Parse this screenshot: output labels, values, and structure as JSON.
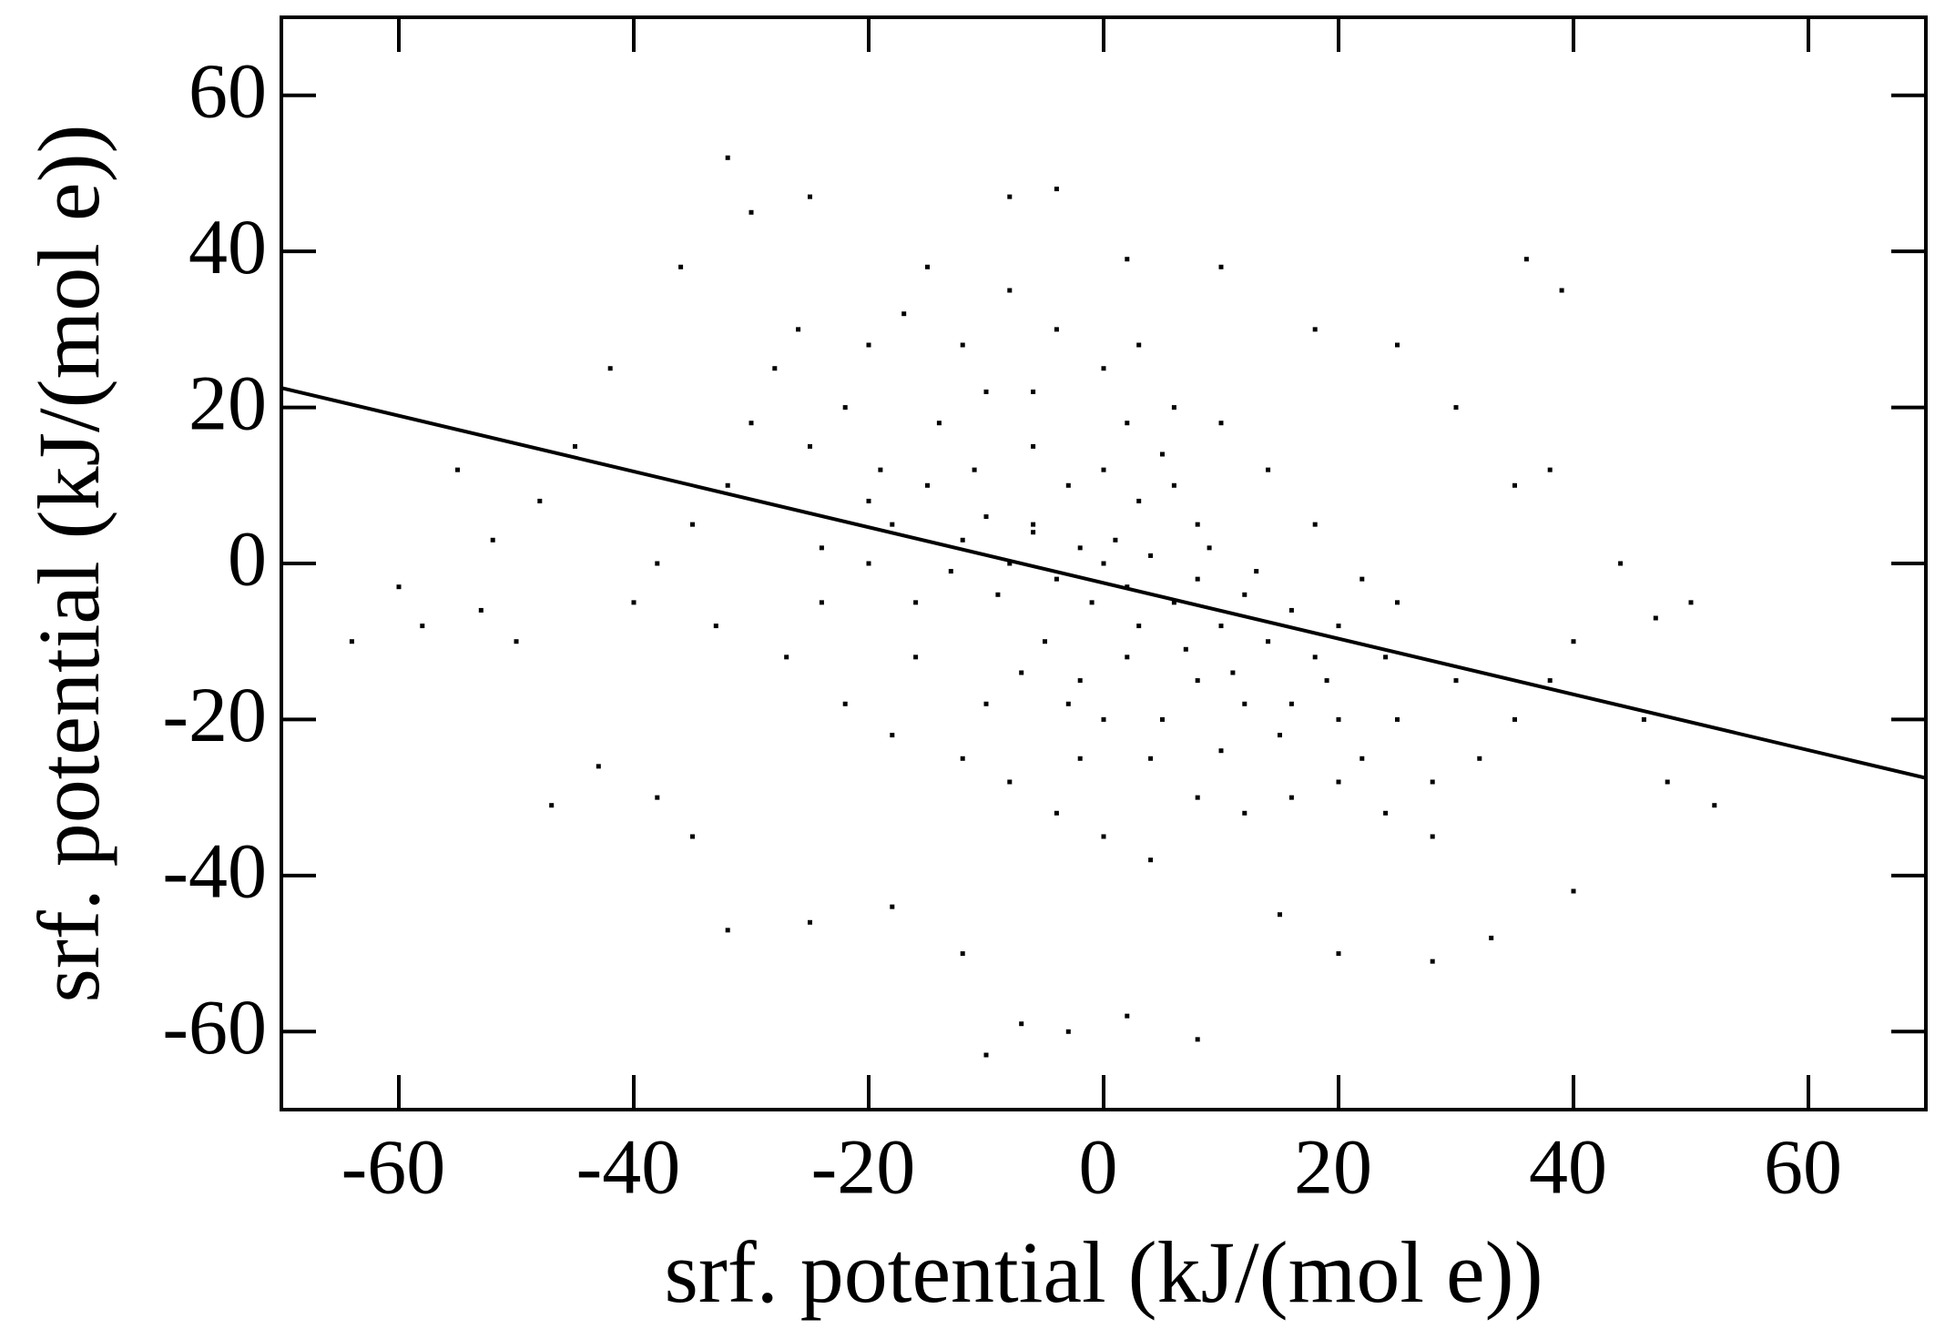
{
  "chart_data": {
    "type": "scatter",
    "x_label": "srf. potential (kJ/(mol e))",
    "y_label": "srf. potential (kJ/(mol e))",
    "xlim": [
      -70,
      70
    ],
    "ylim": [
      -70,
      70
    ],
    "xticks": [
      -60,
      -40,
      -20,
      0,
      20,
      40,
      60
    ],
    "yticks": [
      -60,
      -40,
      -20,
      0,
      20,
      40,
      60
    ],
    "grid": false,
    "series": [
      {
        "color": "#000000",
        "x": [
          -20,
          -18,
          -15,
          -12,
          -10,
          -8,
          -6,
          -4,
          -2,
          0,
          2,
          4,
          6,
          8,
          10,
          12,
          14,
          16,
          -25,
          -22,
          -24,
          -16,
          -14,
          -10,
          -6,
          -3,
          0,
          3,
          5,
          8,
          -5,
          -2,
          2,
          5,
          8,
          12,
          15,
          18,
          20,
          22,
          25,
          28,
          30,
          -28,
          -26,
          -20,
          -17,
          -12,
          -8,
          -4,
          0,
          3,
          6,
          10,
          14,
          18,
          22,
          25,
          -30,
          -32,
          -35,
          -38,
          -40,
          -33,
          -27,
          -22,
          -18,
          -12,
          -8,
          -4,
          0,
          4,
          8,
          12,
          16,
          20,
          24,
          28,
          32,
          35,
          38,
          40,
          -45,
          -48,
          -52,
          -55,
          -60,
          -64,
          -58,
          -42,
          -36,
          -30,
          -25,
          -32,
          -15,
          -8,
          -4,
          2,
          10,
          18,
          25,
          30,
          35,
          38,
          39,
          36,
          44,
          47,
          50,
          46,
          52,
          48,
          40,
          33,
          28,
          20,
          15,
          8,
          2,
          -3,
          -7,
          -10,
          -12,
          -18,
          -25,
          -32,
          -35,
          -38,
          -43,
          -47,
          -50,
          -53,
          -6,
          -1,
          1,
          3,
          -9,
          7,
          9,
          -11,
          -13,
          11,
          13,
          -7,
          4,
          0,
          -3,
          -16,
          16,
          -19,
          19,
          6,
          -6,
          2,
          -20,
          20,
          -24,
          24,
          -2,
          10,
          -10
        ],
        "values": [
          8,
          5,
          10,
          3,
          6,
          0,
          4,
          -2,
          2,
          0,
          -3,
          1,
          -5,
          -2,
          -8,
          -4,
          -10,
          -6,
          15,
          20,
          2,
          -5,
          18,
          22,
          15,
          10,
          12,
          8,
          14,
          5,
          -10,
          -15,
          -12,
          -20,
          -15,
          -18,
          -22,
          -12,
          -8,
          -25,
          -20,
          -28,
          -15,
          25,
          30,
          28,
          32,
          28,
          35,
          30,
          25,
          28,
          20,
          18,
          12,
          5,
          -2,
          -5,
          18,
          10,
          5,
          0,
          -5,
          -8,
          -12,
          -18,
          -22,
          -25,
          -28,
          -32,
          -35,
          -38,
          -30,
          -32,
          -30,
          -28,
          -32,
          -35,
          -25,
          -20,
          -15,
          -10,
          15,
          8,
          3,
          12,
          -3,
          -10,
          -8,
          25,
          38,
          45,
          47,
          52,
          38,
          47,
          48,
          39,
          38,
          30,
          28,
          20,
          10,
          12,
          35,
          39,
          0,
          -7,
          -5,
          -20,
          -31,
          -28,
          -42,
          -48,
          -51,
          -50,
          -45,
          -61,
          -58,
          -60,
          -59,
          -63,
          -50,
          -44,
          -46,
          -47,
          -35,
          -30,
          -26,
          -31,
          -10,
          -6,
          5,
          -5,
          3,
          -8,
          -4,
          -11,
          2,
          12,
          -1,
          -14,
          -1,
          -14,
          -25,
          -20,
          -18,
          -12,
          -18,
          12,
          -15,
          10,
          22,
          18,
          0,
          -20,
          -5,
          -12,
          -25,
          -24,
          -18
        ]
      }
    ],
    "fit_line": {
      "color": "#000000",
      "x": [
        -70,
        70
      ],
      "values": [
        22.5,
        -27.5
      ]
    }
  }
}
